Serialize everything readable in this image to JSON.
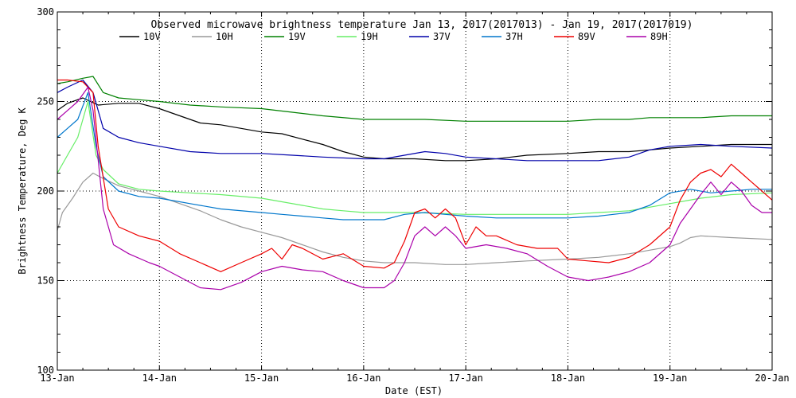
{
  "chart_data": {
    "type": "line",
    "title": "Observed microwave brightness temperature Jan 13, 2017(2017013) - Jan 19, 2017(2017019)",
    "xlabel": "Date (EST)",
    "ylabel": "Brightness Temperature, Deg K",
    "x_ticks": [
      "13-Jan",
      "14-Jan",
      "15-Jan",
      "16-Jan",
      "17-Jan",
      "18-Jan",
      "19-Jan",
      "20-Jan"
    ],
    "y_ticks": [
      100,
      150,
      200,
      250,
      300
    ],
    "xlim": [
      0,
      7
    ],
    "ylim": [
      100,
      300
    ],
    "grid": true,
    "legend_position": "top",
    "series": [
      {
        "name": "10V",
        "color": "#000000",
        "points": [
          [
            0,
            245
          ],
          [
            0.1,
            249
          ],
          [
            0.25,
            252
          ],
          [
            0.4,
            248
          ],
          [
            0.6,
            249
          ],
          [
            0.8,
            249
          ],
          [
            1,
            246
          ],
          [
            1.2,
            242
          ],
          [
            1.4,
            238
          ],
          [
            1.6,
            237
          ],
          [
            1.8,
            235
          ],
          [
            2,
            233
          ],
          [
            2.2,
            232
          ],
          [
            2.4,
            229
          ],
          [
            2.6,
            226
          ],
          [
            2.8,
            222
          ],
          [
            3,
            219
          ],
          [
            3.2,
            218
          ],
          [
            3.5,
            218
          ],
          [
            3.8,
            217
          ],
          [
            4,
            217
          ],
          [
            4.3,
            218
          ],
          [
            4.6,
            220
          ],
          [
            5,
            221
          ],
          [
            5.3,
            222
          ],
          [
            5.6,
            222
          ],
          [
            5.8,
            223
          ],
          [
            6,
            224
          ],
          [
            6.3,
            225
          ],
          [
            6.6,
            226
          ],
          [
            7,
            226
          ]
        ]
      },
      {
        "name": "10H",
        "color": "#999999",
        "points": [
          [
            0,
            178
          ],
          [
            0.05,
            188
          ],
          [
            0.15,
            196
          ],
          [
            0.25,
            205
          ],
          [
            0.35,
            210
          ],
          [
            0.45,
            207
          ],
          [
            0.6,
            203
          ],
          [
            0.8,
            200
          ],
          [
            1,
            197
          ],
          [
            1.2,
            193
          ],
          [
            1.4,
            189
          ],
          [
            1.6,
            184
          ],
          [
            1.8,
            180
          ],
          [
            2,
            177
          ],
          [
            2.2,
            174
          ],
          [
            2.4,
            170
          ],
          [
            2.6,
            166
          ],
          [
            2.8,
            163
          ],
          [
            3,
            161
          ],
          [
            3.2,
            160
          ],
          [
            3.5,
            160
          ],
          [
            3.8,
            159
          ],
          [
            4,
            159
          ],
          [
            4.3,
            160
          ],
          [
            4.6,
            161
          ],
          [
            5,
            162
          ],
          [
            5.3,
            163
          ],
          [
            5.6,
            165
          ],
          [
            5.8,
            167
          ],
          [
            6,
            169
          ],
          [
            6.1,
            171
          ],
          [
            6.2,
            174
          ],
          [
            6.3,
            175
          ],
          [
            6.6,
            174
          ],
          [
            7,
            173
          ]
        ]
      },
      {
        "name": "19V",
        "color": "#008000",
        "points": [
          [
            0,
            260
          ],
          [
            0.1,
            261
          ],
          [
            0.25,
            263
          ],
          [
            0.35,
            264
          ],
          [
            0.45,
            255
          ],
          [
            0.6,
            252
          ],
          [
            0.8,
            251
          ],
          [
            1,
            250
          ],
          [
            1.3,
            248
          ],
          [
            1.6,
            247
          ],
          [
            2,
            246
          ],
          [
            2.3,
            244
          ],
          [
            2.6,
            242
          ],
          [
            3,
            240
          ],
          [
            3.3,
            240
          ],
          [
            3.6,
            240
          ],
          [
            4,
            239
          ],
          [
            4.3,
            239
          ],
          [
            4.6,
            239
          ],
          [
            5,
            239
          ],
          [
            5.3,
            240
          ],
          [
            5.6,
            240
          ],
          [
            5.8,
            241
          ],
          [
            6,
            241
          ],
          [
            6.3,
            241
          ],
          [
            6.6,
            242
          ],
          [
            7,
            242
          ]
        ]
      },
      {
        "name": "19H",
        "color": "#66ee66",
        "points": [
          [
            0,
            210
          ],
          [
            0.1,
            220
          ],
          [
            0.2,
            230
          ],
          [
            0.3,
            250
          ],
          [
            0.38,
            220
          ],
          [
            0.45,
            212
          ],
          [
            0.6,
            204
          ],
          [
            0.8,
            201
          ],
          [
            1,
            200
          ],
          [
            1.3,
            199
          ],
          [
            1.6,
            198
          ],
          [
            2,
            196
          ],
          [
            2.2,
            194
          ],
          [
            2.4,
            192
          ],
          [
            2.6,
            190
          ],
          [
            2.8,
            189
          ],
          [
            3,
            188
          ],
          [
            3.5,
            188
          ],
          [
            4,
            187
          ],
          [
            4.5,
            187
          ],
          [
            5,
            187
          ],
          [
            5.3,
            188
          ],
          [
            5.6,
            189
          ],
          [
            5.8,
            191
          ],
          [
            6,
            193
          ],
          [
            6.3,
            196
          ],
          [
            6.6,
            198
          ],
          [
            7,
            199
          ]
        ]
      },
      {
        "name": "37V",
        "color": "#0000aa",
        "points": [
          [
            0,
            255
          ],
          [
            0.1,
            258
          ],
          [
            0.25,
            262
          ],
          [
            0.35,
            255
          ],
          [
            0.45,
            235
          ],
          [
            0.6,
            230
          ],
          [
            0.8,
            227
          ],
          [
            1,
            225
          ],
          [
            1.3,
            222
          ],
          [
            1.6,
            221
          ],
          [
            2,
            221
          ],
          [
            2.3,
            220
          ],
          [
            2.6,
            219
          ],
          [
            3,
            218
          ],
          [
            3.2,
            218
          ],
          [
            3.4,
            220
          ],
          [
            3.6,
            222
          ],
          [
            3.8,
            221
          ],
          [
            4,
            219
          ],
          [
            4.3,
            218
          ],
          [
            4.6,
            217
          ],
          [
            5,
            217
          ],
          [
            5.3,
            217
          ],
          [
            5.6,
            219
          ],
          [
            5.8,
            223
          ],
          [
            6,
            225
          ],
          [
            6.3,
            226
          ],
          [
            6.6,
            225
          ],
          [
            7,
            224
          ]
        ]
      },
      {
        "name": "37H",
        "color": "#0077cc",
        "points": [
          [
            0,
            230
          ],
          [
            0.1,
            235
          ],
          [
            0.2,
            240
          ],
          [
            0.3,
            255
          ],
          [
            0.38,
            225
          ],
          [
            0.45,
            208
          ],
          [
            0.6,
            200
          ],
          [
            0.8,
            197
          ],
          [
            1,
            196
          ],
          [
            1.3,
            193
          ],
          [
            1.6,
            190
          ],
          [
            2,
            188
          ],
          [
            2.2,
            187
          ],
          [
            2.4,
            186
          ],
          [
            2.6,
            185
          ],
          [
            2.8,
            184
          ],
          [
            3,
            184
          ],
          [
            3.2,
            184
          ],
          [
            3.4,
            187
          ],
          [
            3.6,
            188
          ],
          [
            3.8,
            187
          ],
          [
            4,
            186
          ],
          [
            4.3,
            185
          ],
          [
            4.6,
            185
          ],
          [
            5,
            185
          ],
          [
            5.3,
            186
          ],
          [
            5.6,
            188
          ],
          [
            5.8,
            192
          ],
          [
            6,
            199
          ],
          [
            6.2,
            201
          ],
          [
            6.4,
            199
          ],
          [
            6.6,
            200
          ],
          [
            6.8,
            201
          ],
          [
            7,
            201
          ]
        ]
      },
      {
        "name": "89V",
        "color": "#ee0000",
        "points": [
          [
            0,
            262
          ],
          [
            0.1,
            262
          ],
          [
            0.25,
            261
          ],
          [
            0.35,
            255
          ],
          [
            0.4,
            225
          ],
          [
            0.5,
            190
          ],
          [
            0.6,
            180
          ],
          [
            0.8,
            175
          ],
          [
            1,
            172
          ],
          [
            1.2,
            165
          ],
          [
            1.4,
            160
          ],
          [
            1.6,
            155
          ],
          [
            1.8,
            160
          ],
          [
            2,
            165
          ],
          [
            2.1,
            168
          ],
          [
            2.2,
            162
          ],
          [
            2.3,
            170
          ],
          [
            2.4,
            168
          ],
          [
            2.6,
            162
          ],
          [
            2.8,
            165
          ],
          [
            3,
            158
          ],
          [
            3.2,
            157
          ],
          [
            3.3,
            160
          ],
          [
            3.4,
            172
          ],
          [
            3.5,
            188
          ],
          [
            3.6,
            190
          ],
          [
            3.7,
            185
          ],
          [
            3.8,
            190
          ],
          [
            3.9,
            185
          ],
          [
            4,
            170
          ],
          [
            4.1,
            180
          ],
          [
            4.2,
            175
          ],
          [
            4.3,
            175
          ],
          [
            4.5,
            170
          ],
          [
            4.7,
            168
          ],
          [
            4.9,
            168
          ],
          [
            5,
            162
          ],
          [
            5.2,
            161
          ],
          [
            5.4,
            160
          ],
          [
            5.6,
            163
          ],
          [
            5.8,
            170
          ],
          [
            6,
            180
          ],
          [
            6.1,
            195
          ],
          [
            6.2,
            205
          ],
          [
            6.3,
            210
          ],
          [
            6.4,
            212
          ],
          [
            6.5,
            208
          ],
          [
            6.6,
            215
          ],
          [
            6.7,
            210
          ],
          [
            6.8,
            205
          ],
          [
            6.9,
            200
          ],
          [
            7,
            195
          ]
        ]
      },
      {
        "name": "89H",
        "color": "#aa00aa",
        "points": [
          [
            0,
            240
          ],
          [
            0.1,
            245
          ],
          [
            0.2,
            250
          ],
          [
            0.3,
            258
          ],
          [
            0.35,
            245
          ],
          [
            0.45,
            190
          ],
          [
            0.55,
            170
          ],
          [
            0.7,
            165
          ],
          [
            0.9,
            160
          ],
          [
            1,
            158
          ],
          [
            1.2,
            152
          ],
          [
            1.4,
            146
          ],
          [
            1.6,
            145
          ],
          [
            1.8,
            149
          ],
          [
            2,
            155
          ],
          [
            2.2,
            158
          ],
          [
            2.4,
            156
          ],
          [
            2.6,
            155
          ],
          [
            2.8,
            150
          ],
          [
            3,
            146
          ],
          [
            3.2,
            146
          ],
          [
            3.3,
            150
          ],
          [
            3.4,
            160
          ],
          [
            3.5,
            175
          ],
          [
            3.6,
            180
          ],
          [
            3.7,
            175
          ],
          [
            3.8,
            180
          ],
          [
            3.9,
            175
          ],
          [
            4,
            168
          ],
          [
            4.2,
            170
          ],
          [
            4.4,
            168
          ],
          [
            4.6,
            165
          ],
          [
            4.8,
            158
          ],
          [
            5,
            152
          ],
          [
            5.2,
            150
          ],
          [
            5.4,
            152
          ],
          [
            5.6,
            155
          ],
          [
            5.8,
            160
          ],
          [
            6,
            170
          ],
          [
            6.1,
            182
          ],
          [
            6.2,
            190
          ],
          [
            6.3,
            198
          ],
          [
            6.4,
            205
          ],
          [
            6.5,
            198
          ],
          [
            6.6,
            205
          ],
          [
            6.7,
            200
          ],
          [
            6.8,
            192
          ],
          [
            6.9,
            188
          ],
          [
            7,
            188
          ]
        ]
      }
    ]
  }
}
